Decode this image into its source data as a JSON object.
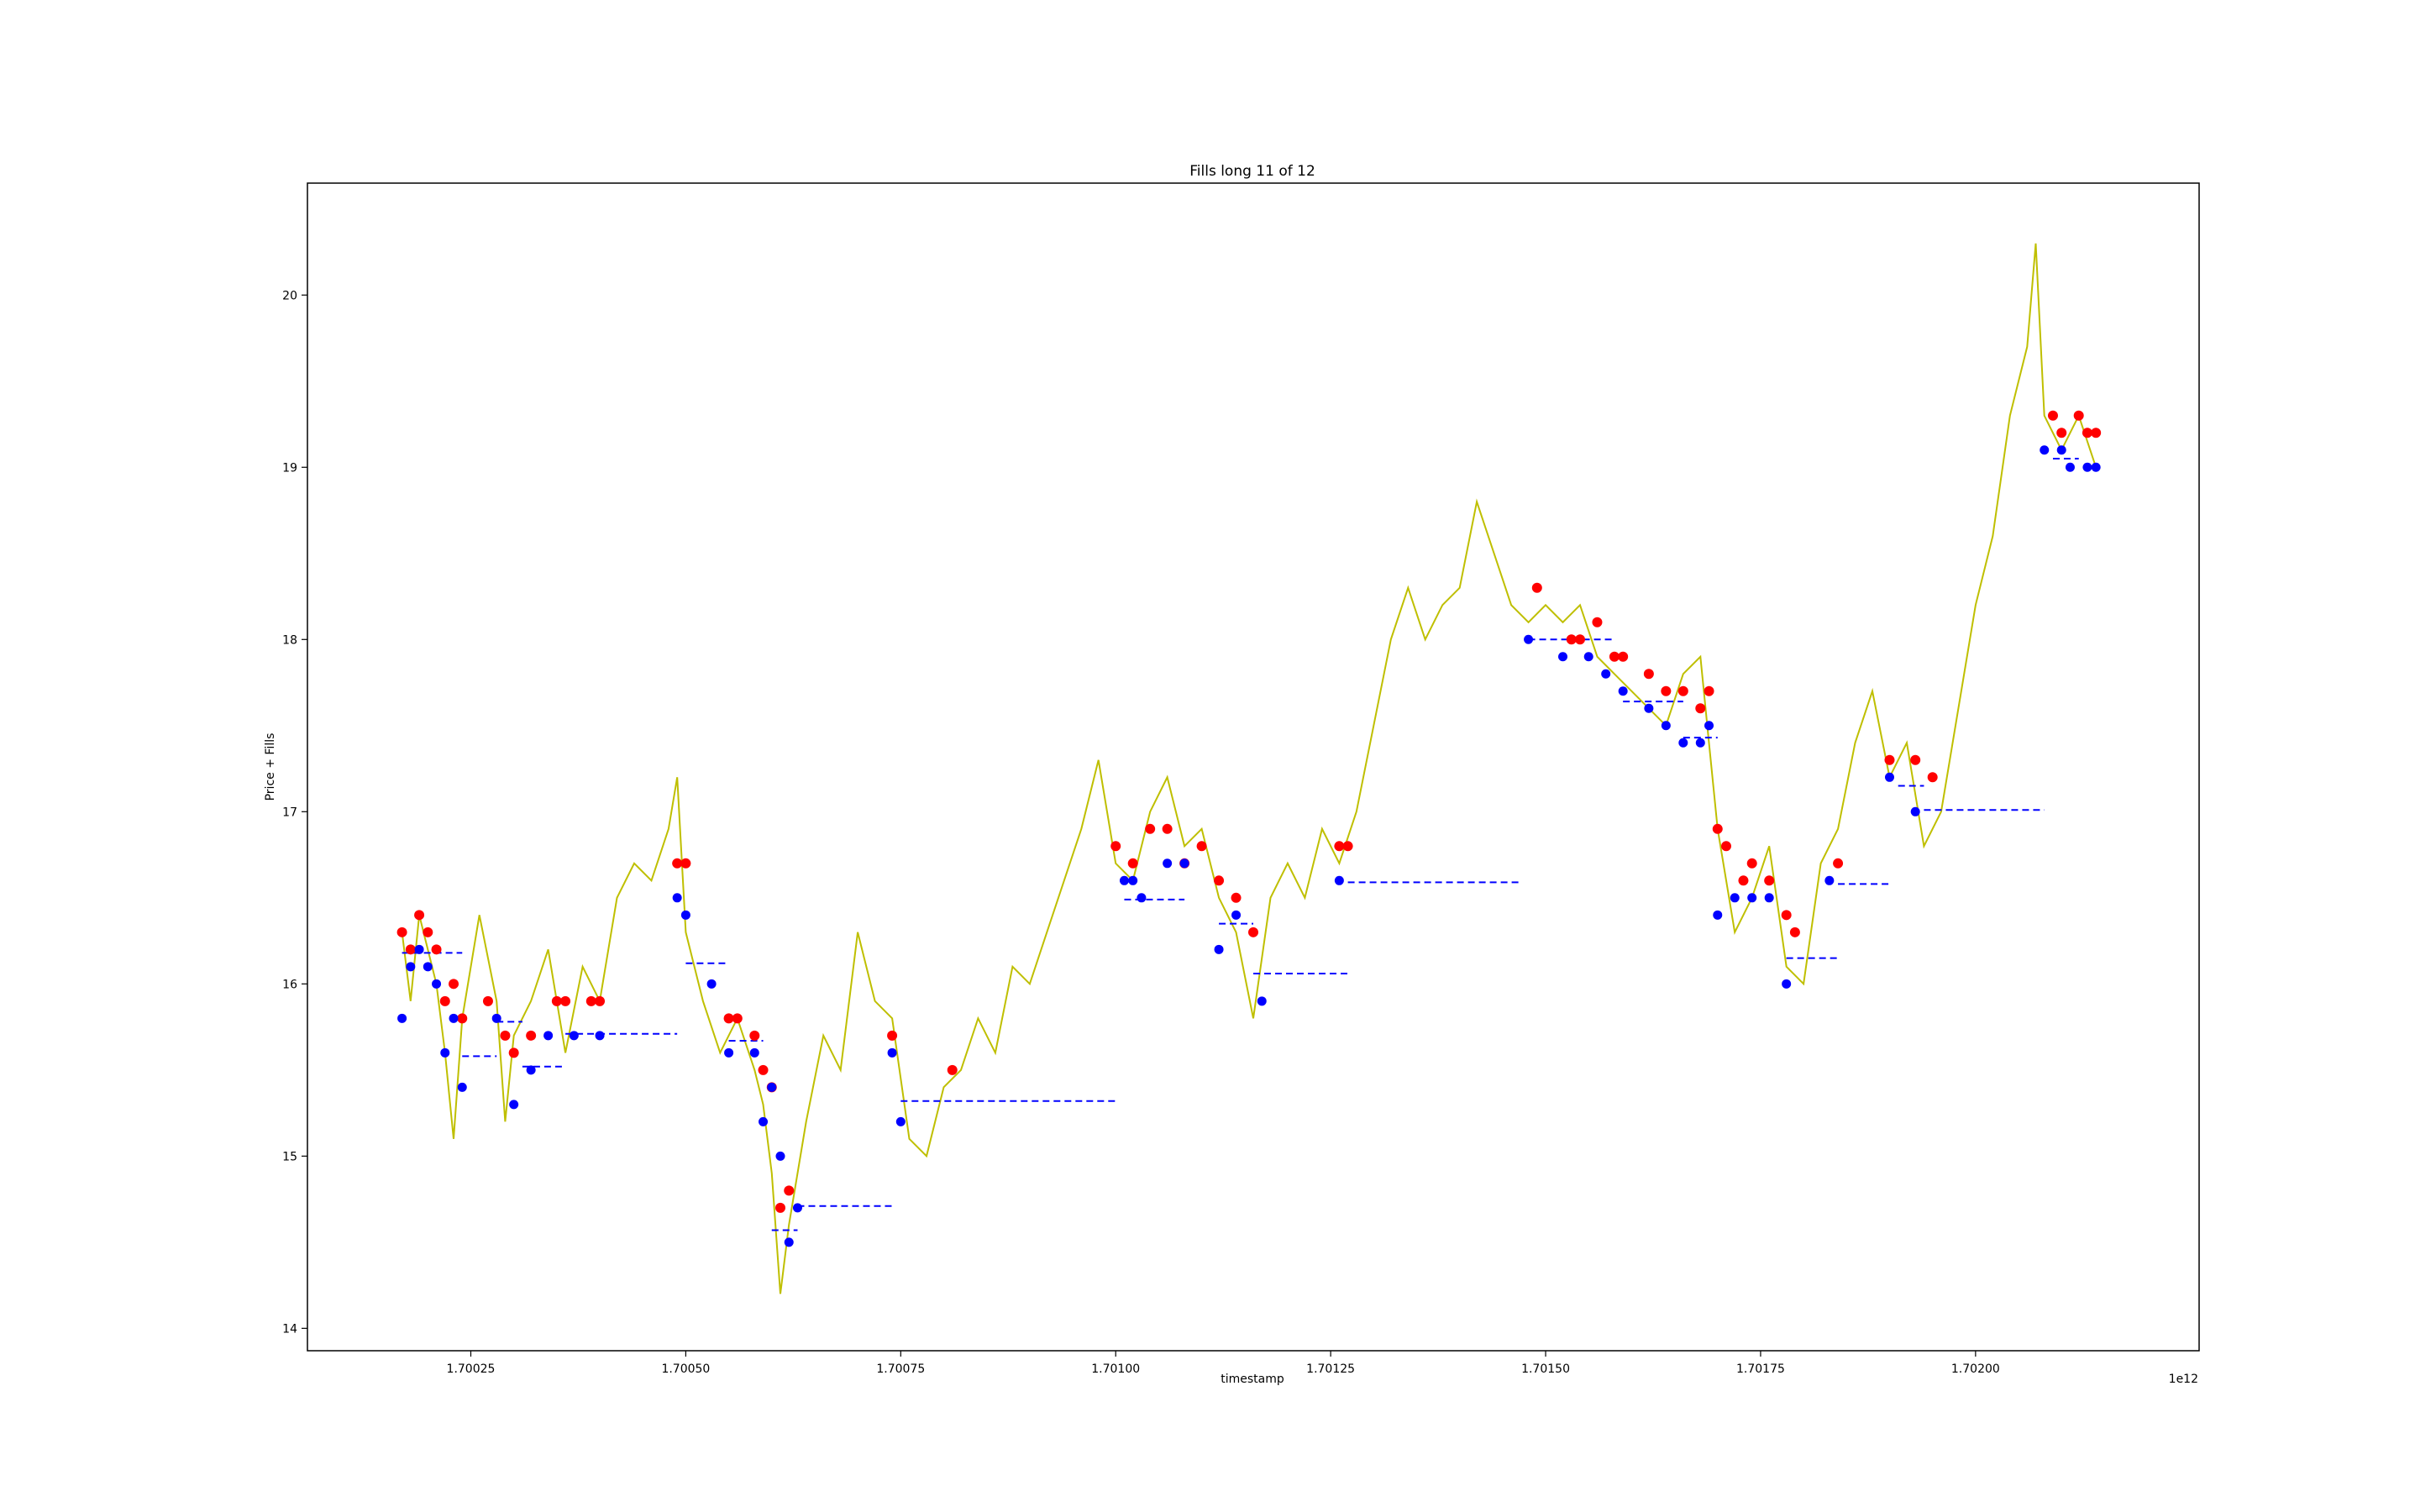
{
  "chart_data": {
    "type": "line",
    "title": "Fills long 11 of 12",
    "xlabel": "timestamp",
    "ylabel": "Price + Fills",
    "x_offset_label": "1e12",
    "xlim": [
      1.70006,
      1.70226
    ],
    "ylim": [
      13.87,
      20.65
    ],
    "x_ticks": [
      1.70025,
      1.7005,
      1.70075,
      1.701,
      1.70125,
      1.7015,
      1.70175,
      1.702
    ],
    "x_tick_labels": [
      "1.70025",
      "1.70050",
      "1.70075",
      "1.70100",
      "1.70125",
      "1.70150",
      "1.70175",
      "1.70200"
    ],
    "y_ticks": [
      14,
      15,
      16,
      17,
      18,
      19,
      20
    ],
    "y_tick_labels": [
      "14",
      "15",
      "16",
      "17",
      "18",
      "19",
      "20"
    ],
    "grid": false,
    "colors": {
      "price": "#bfbf00",
      "entry_fills": "#ff0000",
      "close_fills": "#0000ff",
      "position_price": "#0000ff"
    },
    "price_series": {
      "x": [
        1.70017,
        1.70018,
        1.70019,
        1.7002,
        1.70021,
        1.70022,
        1.70023,
        1.70024,
        1.70026,
        1.70028,
        1.70029,
        1.7003,
        1.70032,
        1.70034,
        1.70036,
        1.70038,
        1.7004,
        1.70042,
        1.70044,
        1.70046,
        1.70048,
        1.70049,
        1.7005,
        1.70052,
        1.70054,
        1.70056,
        1.70058,
        1.70059,
        1.7006,
        1.70061,
        1.70062,
        1.70064,
        1.70066,
        1.70068,
        1.7007,
        1.70072,
        1.70074,
        1.70076,
        1.70078,
        1.7008,
        1.70082,
        1.70084,
        1.70086,
        1.70088,
        1.7009,
        1.70092,
        1.70094,
        1.70096,
        1.70098,
        1.701,
        1.70102,
        1.70104,
        1.70106,
        1.70108,
        1.7011,
        1.70112,
        1.70114,
        1.70116,
        1.70118,
        1.7012,
        1.70122,
        1.70124,
        1.70126,
        1.70128,
        1.7013,
        1.70132,
        1.70134,
        1.70136,
        1.70138,
        1.7014,
        1.70142,
        1.70144,
        1.70146,
        1.70148,
        1.7015,
        1.70152,
        1.70154,
        1.70156,
        1.70158,
        1.7016,
        1.70162,
        1.70164,
        1.70166,
        1.70168,
        1.70169,
        1.7017,
        1.70172,
        1.70174,
        1.70176,
        1.70178,
        1.7018,
        1.70182,
        1.70184,
        1.70186,
        1.70188,
        1.7019,
        1.70192,
        1.70194,
        1.70196,
        1.70198,
        1.702,
        1.70202,
        1.70204,
        1.70206,
        1.70207,
        1.70208,
        1.7021,
        1.70212,
        1.70214
      ],
      "y": [
        16.3,
        15.9,
        16.4,
        16.2,
        16.0,
        15.6,
        15.1,
        15.8,
        16.4,
        15.9,
        15.2,
        15.7,
        15.9,
        16.2,
        15.6,
        16.1,
        15.9,
        16.5,
        16.7,
        16.6,
        16.9,
        17.2,
        16.3,
        15.9,
        15.6,
        15.8,
        15.5,
        15.3,
        14.9,
        14.2,
        14.6,
        15.2,
        15.7,
        15.5,
        16.3,
        15.9,
        15.8,
        15.1,
        15.0,
        15.4,
        15.5,
        15.8,
        15.6,
        16.1,
        16.0,
        16.3,
        16.6,
        16.9,
        17.3,
        16.7,
        16.6,
        17.0,
        17.2,
        16.8,
        16.9,
        16.5,
        16.3,
        15.8,
        16.5,
        16.7,
        16.5,
        16.9,
        16.7,
        17.0,
        17.5,
        18.0,
        18.3,
        18.0,
        18.2,
        18.3,
        18.8,
        18.5,
        18.2,
        18.1,
        18.2,
        18.1,
        18.2,
        17.9,
        17.8,
        17.7,
        17.6,
        17.5,
        17.8,
        17.9,
        17.4,
        16.9,
        16.3,
        16.5,
        16.8,
        16.1,
        16.0,
        16.7,
        16.9,
        17.4,
        17.7,
        17.2,
        17.4,
        16.8,
        17.0,
        17.6,
        18.2,
        18.6,
        19.3,
        19.7,
        20.3,
        19.3,
        19.1,
        19.3,
        19.0
      ],
      "note": ""
    },
    "entry_fills": {
      "x": [
        1.70017,
        1.70018,
        1.70019,
        1.7002,
        1.70021,
        1.70022,
        1.70023,
        1.70024,
        1.70027,
        1.70029,
        1.7003,
        1.70032,
        1.70035,
        1.70036,
        1.70039,
        1.7004,
        1.70049,
        1.7005,
        1.70055,
        1.70056,
        1.70058,
        1.70059,
        1.7006,
        1.70061,
        1.70062,
        1.70074,
        1.70081,
        1.701,
        1.70102,
        1.70104,
        1.70106,
        1.70108,
        1.7011,
        1.70112,
        1.70114,
        1.70116,
        1.70126,
        1.70127,
        1.70149,
        1.70153,
        1.70154,
        1.70156,
        1.70158,
        1.70159,
        1.70162,
        1.70164,
        1.70166,
        1.70168,
        1.70169,
        1.7017,
        1.70171,
        1.70173,
        1.70174,
        1.70176,
        1.70178,
        1.70179,
        1.70184,
        1.7019,
        1.70193,
        1.70195,
        1.70209,
        1.7021,
        1.70212,
        1.70213,
        1.70214
      ],
      "y": [
        16.3,
        16.2,
        16.4,
        16.3,
        16.2,
        15.9,
        16.0,
        15.8,
        15.9,
        15.7,
        15.6,
        15.7,
        15.9,
        15.9,
        15.9,
        15.9,
        16.7,
        16.7,
        15.8,
        15.8,
        15.7,
        15.5,
        15.4,
        14.7,
        14.8,
        15.7,
        15.5,
        16.8,
        16.7,
        16.9,
        16.9,
        16.7,
        16.8,
        16.6,
        16.5,
        16.3,
        16.8,
        16.8,
        18.3,
        18.0,
        18.0,
        18.1,
        17.9,
        17.9,
        17.8,
        17.7,
        17.7,
        17.6,
        17.7,
        16.9,
        16.8,
        16.6,
        16.7,
        16.6,
        16.4,
        16.3,
        16.7,
        17.3,
        17.3,
        17.2,
        19.3,
        19.2,
        19.3,
        19.2,
        19.2
      ]
    },
    "close_fills": {
      "x": [
        1.70017,
        1.70018,
        1.70019,
        1.7002,
        1.70021,
        1.70022,
        1.70023,
        1.70024,
        1.70028,
        1.7003,
        1.70032,
        1.70034,
        1.70037,
        1.7004,
        1.70049,
        1.7005,
        1.70053,
        1.70055,
        1.70058,
        1.70059,
        1.7006,
        1.70061,
        1.70062,
        1.70063,
        1.70074,
        1.70075,
        1.70101,
        1.70102,
        1.70103,
        1.70106,
        1.70108,
        1.70112,
        1.70114,
        1.70117,
        1.70126,
        1.70148,
        1.70152,
        1.70155,
        1.70157,
        1.70159,
        1.70162,
        1.70164,
        1.70166,
        1.70168,
        1.70169,
        1.7017,
        1.70172,
        1.70174,
        1.70176,
        1.70178,
        1.70183,
        1.7019,
        1.70193,
        1.70208,
        1.7021,
        1.70211,
        1.70213,
        1.70214
      ],
      "y": [
        15.8,
        16.1,
        16.2,
        16.1,
        16.0,
        15.6,
        15.8,
        15.4,
        15.8,
        15.3,
        15.5,
        15.7,
        15.7,
        15.7,
        16.5,
        16.4,
        16.0,
        15.6,
        15.6,
        15.2,
        15.4,
        15.0,
        14.5,
        14.7,
        15.6,
        15.2,
        16.6,
        16.6,
        16.5,
        16.7,
        16.7,
        16.2,
        16.4,
        15.9,
        16.6,
        18.0,
        17.9,
        17.9,
        17.8,
        17.7,
        17.6,
        17.5,
        17.4,
        17.4,
        17.5,
        16.4,
        16.5,
        16.5,
        16.5,
        16.0,
        16.6,
        17.2,
        17.0,
        19.1,
        19.1,
        19.0,
        19.0,
        19.0
      ]
    },
    "position_price_segments": [
      {
        "x": [
          1.70017,
          1.70024
        ],
        "y": 16.18
      },
      {
        "x": [
          1.70024,
          1.70028
        ],
        "y": 15.58
      },
      {
        "x": [
          1.70028,
          1.70031
        ],
        "y": 15.78
      },
      {
        "x": [
          1.70031,
          1.70036
        ],
        "y": 15.52
      },
      {
        "x": [
          1.70036,
          1.70049
        ],
        "y": 15.71
      },
      {
        "x": [
          1.7005,
          1.70055
        ],
        "y": 16.12
      },
      {
        "x": [
          1.70055,
          1.70059
        ],
        "y": 15.67
      },
      {
        "x": [
          1.7006,
          1.70063
        ],
        "y": 14.57
      },
      {
        "x": [
          1.70063,
          1.70074
        ],
        "y": 14.71
      },
      {
        "x": [
          1.70075,
          1.701
        ],
        "y": 15.32
      },
      {
        "x": [
          1.70101,
          1.70108
        ],
        "y": 16.49
      },
      {
        "x": [
          1.70112,
          1.70116
        ],
        "y": 16.35
      },
      {
        "x": [
          1.70116,
          1.70127
        ],
        "y": 16.06
      },
      {
        "x": [
          1.70127,
          1.70147
        ],
        "y": 16.59
      },
      {
        "x": [
          1.70148,
          1.70158
        ],
        "y": 18.0
      },
      {
        "x": [
          1.70159,
          1.70166
        ],
        "y": 17.64
      },
      {
        "x": [
          1.70166,
          1.7017
        ],
        "y": 17.43
      },
      {
        "x": [
          1.70178,
          1.70184
        ],
        "y": 16.15
      },
      {
        "x": [
          1.70184,
          1.7019
        ],
        "y": 16.58
      },
      {
        "x": [
          1.70191,
          1.70194
        ],
        "y": 17.15
      },
      {
        "x": [
          1.70194,
          1.70208
        ],
        "y": 17.01
      },
      {
        "x": [
          1.70209,
          1.70212
        ],
        "y": 19.05
      }
    ]
  }
}
